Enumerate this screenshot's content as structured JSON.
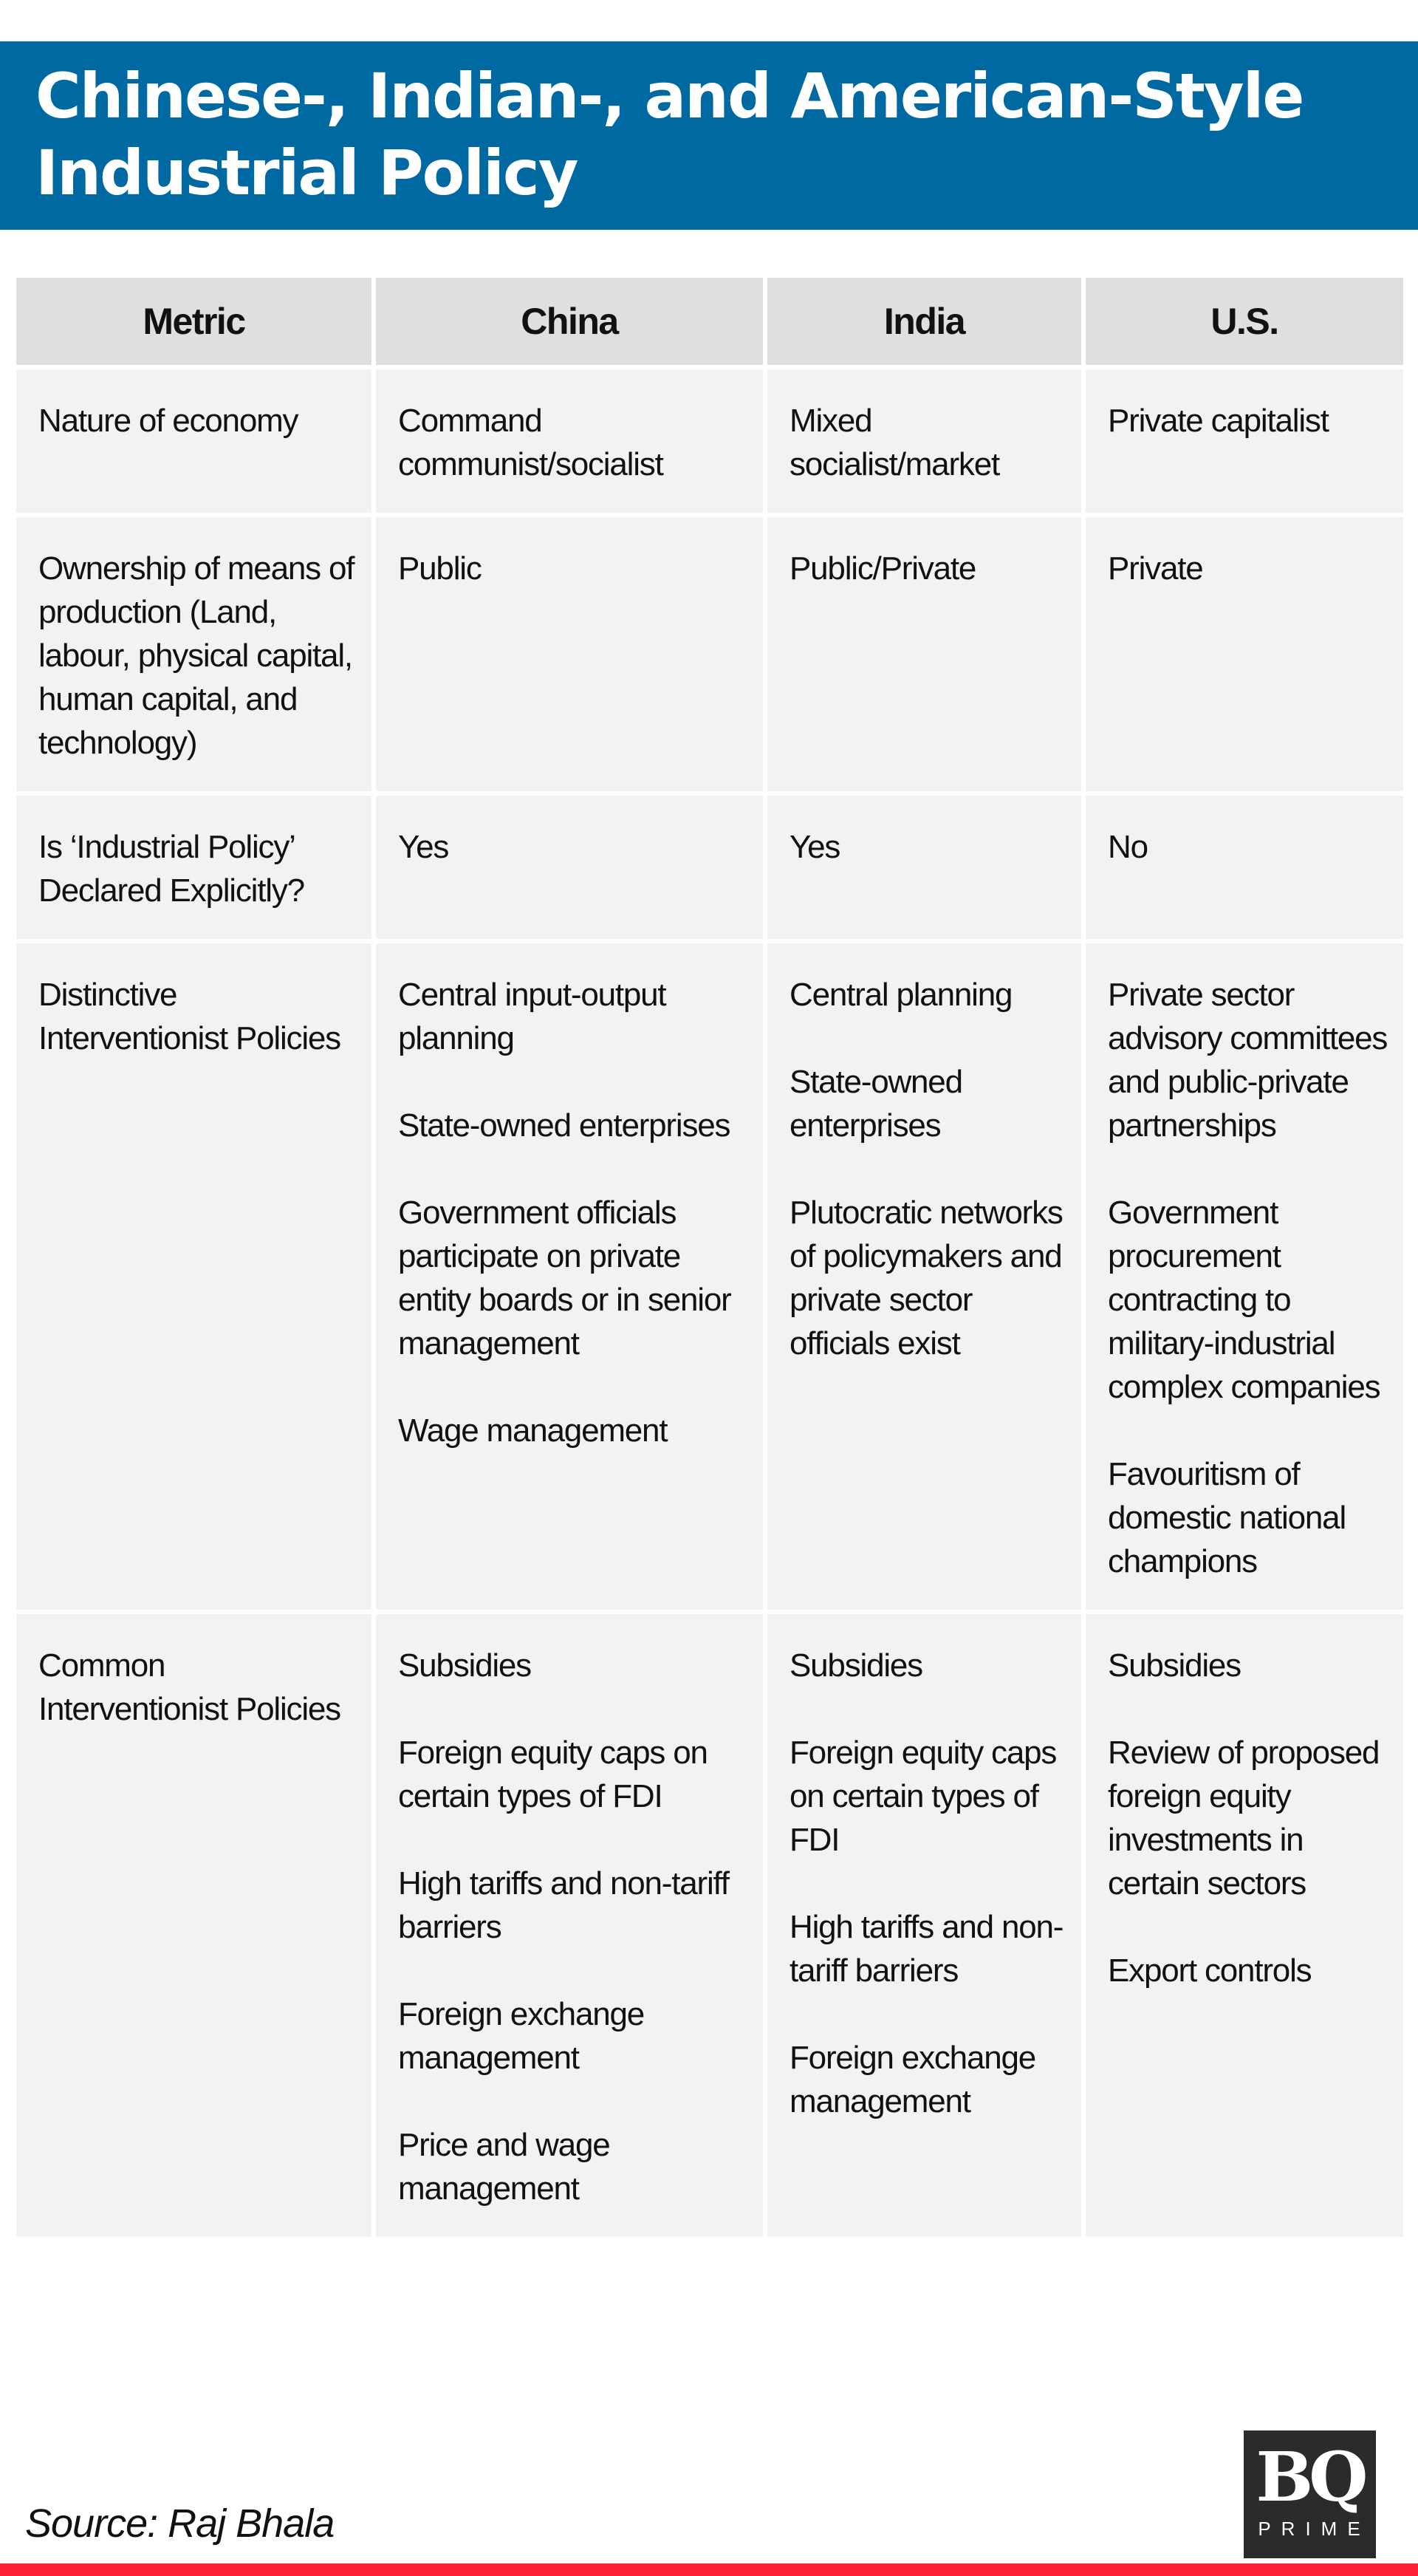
{
  "title": "Chinese-, Indian-, and American-Style Industrial Policy",
  "table": {
    "headers": [
      "Metric",
      "China",
      "India",
      "U.S."
    ],
    "rows": [
      {
        "metric": [
          "Nature of economy"
        ],
        "china": [
          "Command communist/socialist"
        ],
        "india": [
          "Mixed socialist/market"
        ],
        "us": [
          "Private capitalist"
        ]
      },
      {
        "metric": [
          "Ownership of means of production (Land, labour, physical capital, human capital, and technology)"
        ],
        "china": [
          "Public"
        ],
        "india": [
          "Public/Private"
        ],
        "us": [
          "Private"
        ]
      },
      {
        "metric": [
          "Is ‘Industrial Policy’ Declared Explicitly?"
        ],
        "china": [
          "Yes"
        ],
        "india": [
          "Yes"
        ],
        "us": [
          "No"
        ]
      },
      {
        "metric": [
          "Distinctive Interventionist Policies"
        ],
        "china": [
          "Central input-output planning",
          "State-owned enterprises",
          "Government officials participate on private entity boards or in senior management",
          "Wage management"
        ],
        "india": [
          "Central planning",
          "State-owned enterprises",
          "Plutocratic networks of policymakers and private sector officials exist"
        ],
        "us": [
          "Private sector advisory committees and public-private partnerships",
          "Government procurement contracting to military-industrial complex companies",
          "Favouritism of domestic national champions"
        ]
      },
      {
        "metric": [
          "Common Interventionist Policies"
        ],
        "china": [
          "Subsidies",
          "Foreign equity caps on certain types of FDI",
          "High tariffs and non-tariff barriers",
          "Foreign exchange management",
          "Price and wage management"
        ],
        "india": [
          "Subsidies",
          "Foreign equity caps on certain types of FDI",
          "High tariffs and non-tariff barriers",
          "Foreign exchange management"
        ],
        "us": [
          "Subsidies",
          "Review of proposed foreign equity investments in certain sectors",
          "Export controls"
        ]
      }
    ]
  },
  "source": "Source: Raj Bhala",
  "logo": {
    "mark": "BQ",
    "sub": "PRIME"
  },
  "colors": {
    "banner": "#0069a1",
    "header_cell": "#e0dfdd",
    "body_cell": "#f3f2f0",
    "accent_bar": "#ff2139"
  }
}
